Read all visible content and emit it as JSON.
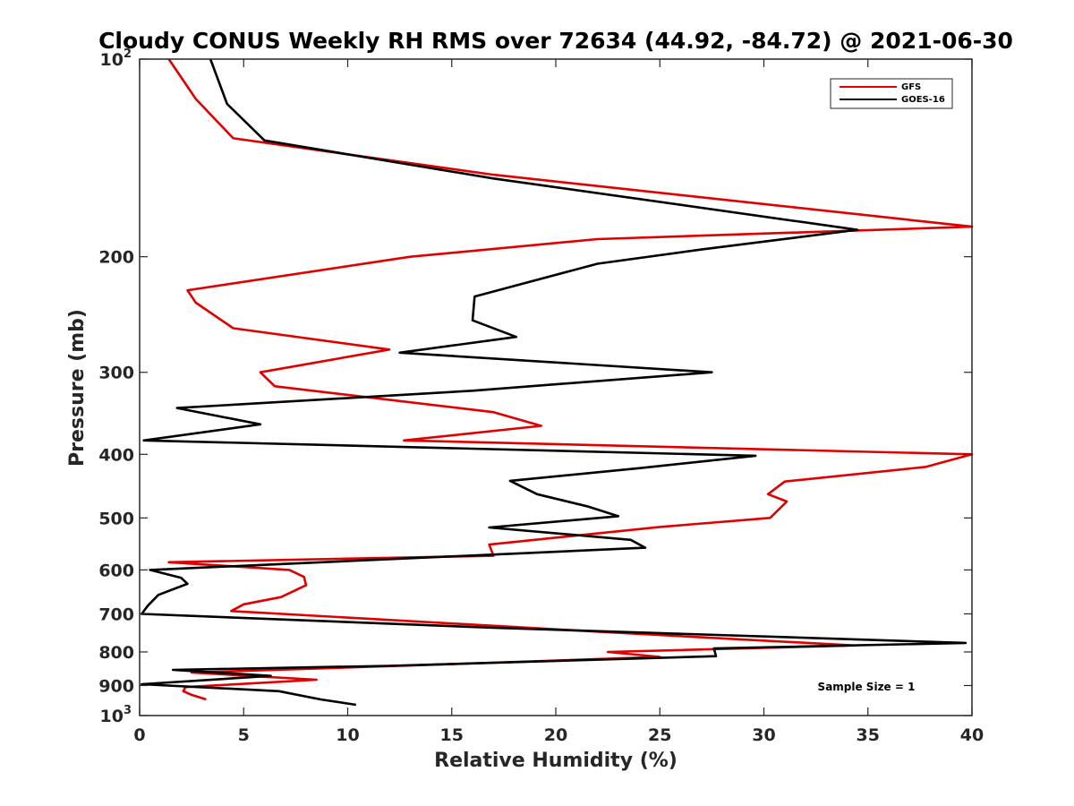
{
  "chart_data": {
    "type": "line",
    "title": "Cloudy CONUS Weekly RH RMS over 72634 (44.92, -84.72) @ 2021-06-30",
    "xlabel": "Relative Humidity (%)",
    "ylabel": "Pressure (mb)",
    "xlim": [
      0,
      40
    ],
    "ylim": [
      100,
      1000
    ],
    "y_scale": "log",
    "y_reversed": true,
    "grid": false,
    "legend_position": "top-right",
    "x_ticks": [
      "0",
      "5",
      "10",
      "15",
      "20",
      "25",
      "30",
      "35",
      "40"
    ],
    "y_ticks": [
      {
        "value": 100,
        "label": "10",
        "exp": "2"
      },
      {
        "value": 200,
        "label": "200"
      },
      {
        "value": 300,
        "label": "300"
      },
      {
        "value": 400,
        "label": "400"
      },
      {
        "value": 500,
        "label": "500"
      },
      {
        "value": 600,
        "label": "600"
      },
      {
        "value": 700,
        "label": "700"
      },
      {
        "value": 800,
        "label": "800"
      },
      {
        "value": 900,
        "label": "900"
      },
      {
        "value": 1000,
        "label": "10",
        "exp": "3"
      }
    ],
    "annotation": "Sample Size = 1",
    "series": [
      {
        "name": "GFS",
        "color": "#e00000",
        "points": [
          [
            1.4,
            100
          ],
          [
            2.7,
            115
          ],
          [
            4.5,
            132
          ],
          [
            17,
            150
          ],
          [
            40,
            180
          ],
          [
            22,
            188
          ],
          [
            13,
            200
          ],
          [
            2.3,
            225
          ],
          [
            2.7,
            235
          ],
          [
            4.5,
            257
          ],
          [
            12,
            277
          ],
          [
            5.8,
            300
          ],
          [
            6.5,
            315
          ],
          [
            17,
            345
          ],
          [
            19.3,
            362
          ],
          [
            12.7,
            381
          ],
          [
            40,
            400
          ],
          [
            37.8,
            418
          ],
          [
            31,
            440
          ],
          [
            30.2,
            460
          ],
          [
            31.1,
            472
          ],
          [
            30.3,
            500
          ],
          [
            25,
            516
          ],
          [
            16.8,
            549
          ],
          [
            17,
            571
          ],
          [
            1.4,
            584
          ],
          [
            7.2,
            600
          ],
          [
            7.9,
            615
          ],
          [
            8,
            633
          ],
          [
            6.8,
            660
          ],
          [
            5,
            677
          ],
          [
            4.4,
            693
          ],
          [
            22,
            745
          ],
          [
            34.3,
            782
          ],
          [
            22.5,
            800
          ],
          [
            25,
            814
          ],
          [
            15,
            835
          ],
          [
            2.5,
            860
          ],
          [
            8.5,
            882
          ],
          [
            2.2,
            905
          ],
          [
            2.1,
            918
          ],
          [
            2.5,
            930
          ],
          [
            3.2,
            945
          ]
        ]
      },
      {
        "name": "GOES-16",
        "color": "#000000",
        "points": [
          [
            3.4,
            100
          ],
          [
            4.2,
            117
          ],
          [
            6,
            133
          ],
          [
            17,
            152
          ],
          [
            34.5,
            182
          ],
          [
            27,
            195
          ],
          [
            22,
            205
          ],
          [
            16.1,
            230
          ],
          [
            16,
            250
          ],
          [
            18.1,
            265
          ],
          [
            12.5,
            280
          ],
          [
            27.5,
            300
          ],
          [
            16,
            320
          ],
          [
            1.8,
            340
          ],
          [
            5.8,
            360
          ],
          [
            0.2,
            381
          ],
          [
            29.6,
            402
          ],
          [
            24,
            420
          ],
          [
            17.8,
            439
          ],
          [
            19.1,
            460
          ],
          [
            21.5,
            480
          ],
          [
            23,
            497
          ],
          [
            16.8,
            517
          ],
          [
            23.6,
            540
          ],
          [
            24.3,
            555
          ],
          [
            0.5,
            600
          ],
          [
            2,
            617
          ],
          [
            2.3,
            630
          ],
          [
            0.9,
            655
          ],
          [
            0.4,
            680
          ],
          [
            0.1,
            700
          ],
          [
            17,
            735
          ],
          [
            39.7,
            775
          ],
          [
            27.6,
            790
          ],
          [
            27.7,
            812
          ],
          [
            12,
            840
          ],
          [
            1.6,
            852
          ],
          [
            6.3,
            870
          ],
          [
            0.1,
            896
          ],
          [
            6.7,
            918
          ],
          [
            8.7,
            945
          ],
          [
            10.4,
            963
          ]
        ]
      }
    ]
  }
}
